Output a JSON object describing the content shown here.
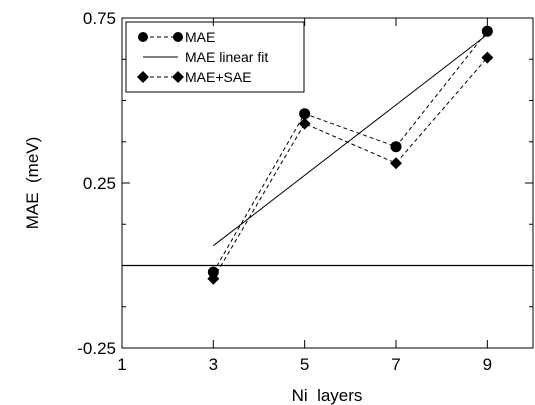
{
  "chart_data": {
    "type": "line",
    "title": "",
    "xlabel": "Ni  layers",
    "ylabel": "MAE  (meV)",
    "xlim": [
      1,
      10
    ],
    "ylim": [
      -0.25,
      0.75
    ],
    "x_ticks": [
      1,
      3,
      5,
      7,
      9
    ],
    "x_tick_labels": [
      "1",
      "3",
      "5",
      "7",
      "9"
    ],
    "y_ticks": [
      -0.25,
      0.25,
      0.75
    ],
    "y_tick_labels": [
      "-0.25",
      "0.25",
      "0.75"
    ],
    "grid": false,
    "legend_position": "top-left",
    "reference_line_y": 0,
    "series": [
      {
        "name": "MAE",
        "style": "dashed",
        "marker": "circle",
        "color": "#000000",
        "x": [
          3,
          5,
          7,
          9
        ],
        "y": [
          -0.02,
          0.46,
          0.36,
          0.71
        ]
      },
      {
        "name": "MAE linear fit",
        "style": "solid",
        "marker": "none",
        "color": "#000000",
        "x": [
          3,
          9
        ],
        "y": [
          0.06,
          0.7
        ]
      },
      {
        "name": "MAE+SAE",
        "style": "dashed",
        "marker": "diamond",
        "color": "#000000",
        "x": [
          3,
          5,
          7,
          9
        ],
        "y": [
          -0.04,
          0.43,
          0.31,
          0.63
        ]
      }
    ]
  }
}
